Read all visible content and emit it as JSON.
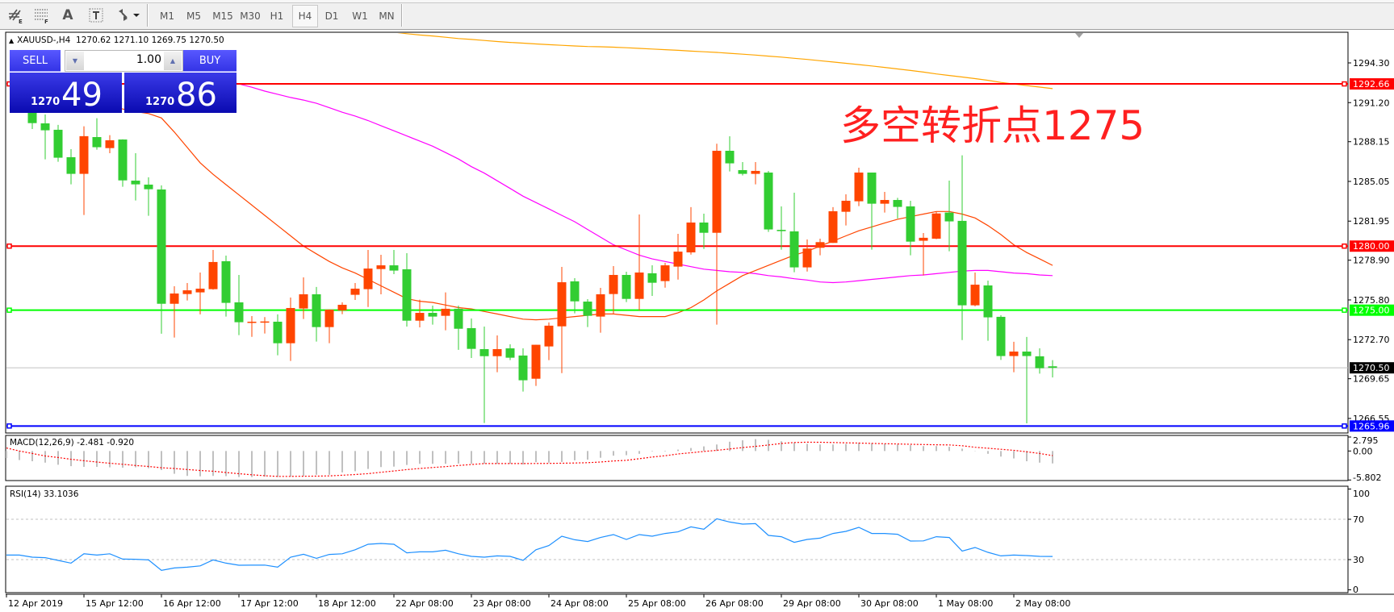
{
  "toolbar": {
    "tools": [
      {
        "icon": "line-studies-grid-icon",
        "glyph": "#",
        "sub": "E"
      },
      {
        "icon": "fibonacci-lines-icon",
        "glyph": "≡",
        "sub": "F"
      },
      {
        "icon": "text-label-icon",
        "glyph": "A"
      },
      {
        "icon": "text-box-icon",
        "glyph": "T"
      },
      {
        "icon": "arrows-dropdown-icon",
        "glyph": "⇅▾"
      }
    ],
    "timeframes": [
      "M1",
      "M5",
      "M15",
      "M30",
      "H1",
      "H4",
      "D1",
      "W1",
      "MN"
    ],
    "active_timeframe": "H4"
  },
  "chart": {
    "header_symbol": "XAUUSD-,H4",
    "header_ohlc": "1270.62 1271.10 1269.75 1270.50",
    "annotation": "多空转折点1275"
  },
  "trade_panel": {
    "sell_label": "SELL",
    "buy_label": "BUY",
    "lot": "1.00",
    "sell_price_small": "1270",
    "sell_price_big": "49",
    "buy_price_small": "1270",
    "buy_price_big": "86"
  },
  "indicators": {
    "macd_label": "MACD(12,26,9) -2.481 -0.920",
    "rsi_label": "RSI(14) 33.1036"
  },
  "chart_data": {
    "type": "candlestick",
    "symbol": "XAUUSD-",
    "timeframe": "H4",
    "colors": {
      "bull": "#ff4500",
      "bear": "#32cd32",
      "ma_fast": "#ff4500",
      "ma_mid": "#ff00ff",
      "ma_slow": "#ffa500",
      "rsi": "#1e90ff",
      "macd_hist": "#c0c0c0",
      "macd_signal": "#ff0000"
    },
    "price_axis": {
      "min": 1265.5,
      "max": 1296.7,
      "ticks": [
        "1294.30",
        "1291.20",
        "1288.15",
        "1285.05",
        "1281.95",
        "1278.90",
        "1275.80",
        "1272.70",
        "1269.65",
        "1266.55"
      ]
    },
    "date_labels": [
      {
        "bar": 0,
        "text": "12 Apr 2019"
      },
      {
        "bar": 6,
        "text": "15 Apr 12:00"
      },
      {
        "bar": 12,
        "text": "16 Apr 12:00"
      },
      {
        "bar": 18,
        "text": "17 Apr 12:00"
      },
      {
        "bar": 24,
        "text": "18 Apr 12:00"
      },
      {
        "bar": 30,
        "text": "22 Apr 08:00"
      },
      {
        "bar": 36,
        "text": "23 Apr 08:00"
      },
      {
        "bar": 42,
        "text": "24 Apr 08:00"
      },
      {
        "bar": 48,
        "text": "25 Apr 08:00"
      },
      {
        "bar": 54,
        "text": "26 Apr 08:00"
      },
      {
        "bar": 60,
        "text": "29 Apr 08:00"
      },
      {
        "bar": 66,
        "text": "30 Apr 08:00"
      },
      {
        "bar": 72,
        "text": "1 May 08:00"
      },
      {
        "bar": 78,
        "text": "2 May 08:00"
      }
    ],
    "horizontal_lines": [
      {
        "price": 1292.66,
        "label": "1292.66",
        "color": "#ff0000"
      },
      {
        "price": 1280.0,
        "label": "1280.00",
        "color": "#ff0000"
      },
      {
        "price": 1275.0,
        "label": "1275.00",
        "color": "#00ff00"
      },
      {
        "price": 1265.96,
        "label": "1265.96",
        "color": "#0000ff"
      }
    ],
    "bid_line": {
      "price": 1270.5,
      "label": "1270.50",
      "color": "#c0c0c0"
    },
    "candles_ohlc": [
      null,
      null,
      [
        1290.6,
        1291.0,
        1289.14,
        1289.6
      ],
      [
        1289.58,
        1290.27,
        1286.77,
        1289.04
      ],
      [
        1289.08,
        1289.46,
        1286.58,
        1286.9
      ],
      [
        1286.94,
        1287.57,
        1284.82,
        1285.64
      ],
      [
        1285.64,
        1289.35,
        1282.43,
        1288.58
      ],
      [
        1288.51,
        1289.98,
        1287.53,
        1287.72
      ],
      [
        1287.65,
        1288.66,
        1287.25,
        1288.26
      ],
      [
        1288.32,
        1288.34,
        1284.63,
        1285.13
      ],
      [
        1285.11,
        1287.25,
        1283.56,
        1284.82
      ],
      [
        1284.8,
        1285.37,
        1282.37,
        1284.44
      ],
      [
        1284.42,
        1284.74,
        1273.16,
        1275.5
      ],
      [
        1275.5,
        1276.87,
        1272.86,
        1276.3
      ],
      [
        1276.26,
        1277.12,
        1275.76,
        1276.55
      ],
      [
        1276.39,
        1277.94,
        1274.67,
        1276.68
      ],
      [
        1276.64,
        1279.7,
        1276.6,
        1278.76
      ],
      [
        1278.82,
        1279.26,
        1274.5,
        1275.57
      ],
      [
        1275.61,
        1277.75,
        1273.05,
        1274.06
      ],
      [
        1274.04,
        1274.54,
        1272.92,
        1274.1
      ],
      [
        1274.06,
        1274.46,
        1273.18,
        1274.12
      ],
      [
        1274.1,
        1274.67,
        1271.48,
        1272.42
      ],
      [
        1272.42,
        1275.99,
        1271.04,
        1275.17
      ],
      [
        1275.13,
        1277.56,
        1274.31,
        1276.24
      ],
      [
        1276.24,
        1276.81,
        1272.55,
        1273.68
      ],
      [
        1273.68,
        1275.06,
        1272.42,
        1275.04
      ],
      [
        1274.98,
        1275.61,
        1274.69,
        1275.42
      ],
      [
        1276.2,
        1277.12,
        1275.8,
        1276.68
      ],
      [
        1276.64,
        1279.7,
        1275.25,
        1278.25
      ],
      [
        1278.21,
        1279.32,
        1276.24,
        1278.5
      ],
      [
        1278.5,
        1279.7,
        1277.81,
        1278.09
      ],
      [
        1278.19,
        1279.45,
        1273.72,
        1274.18
      ],
      [
        1274.18,
        1275.82,
        1273.66,
        1274.79
      ],
      [
        1274.79,
        1275.36,
        1273.87,
        1274.5
      ],
      [
        1274.56,
        1276.39,
        1273.43,
        1275.11
      ],
      [
        1275.11,
        1275.36,
        1271.9,
        1273.55
      ],
      [
        1273.6,
        1274.35,
        1271.27,
        1271.98
      ],
      [
        1271.96,
        1273.72,
        1266.19,
        1271.41
      ],
      [
        1271.41,
        1273.03,
        1270.16,
        1271.96
      ],
      [
        1272.02,
        1272.34,
        1271.1,
        1271.29
      ],
      [
        1271.46,
        1272.02,
        1268.65,
        1269.53
      ],
      [
        1269.65,
        1272.3,
        1269.09,
        1272.3
      ],
      [
        1272.17,
        1274.04,
        1271.1,
        1273.79
      ],
      [
        1273.74,
        1278.38,
        1270.09,
        1277.18
      ],
      [
        1277.25,
        1277.5,
        1274.75,
        1275.69
      ],
      [
        1275.67,
        1275.86,
        1273.68,
        1274.56
      ],
      [
        1274.5,
        1276.74,
        1273.24,
        1276.24
      ],
      [
        1276.26,
        1278.44,
        1274.67,
        1277.75
      ],
      [
        1277.75,
        1278.0,
        1275.63,
        1275.88
      ],
      [
        1275.88,
        1282.47,
        1274.98,
        1277.94
      ],
      [
        1277.88,
        1278.5,
        1276.11,
        1277.14
      ],
      [
        1277.27,
        1278.69,
        1276.76,
        1278.5
      ],
      [
        1278.4,
        1280.96,
        1277.39,
        1279.57
      ],
      [
        1279.51,
        1283.04,
        1279.34,
        1281.84
      ],
      [
        1281.84,
        1282.53,
        1279.78,
        1281.04
      ],
      [
        1281.04,
        1287.99,
        1273.87,
        1287.44
      ],
      [
        1287.44,
        1288.57,
        1285.83,
        1286.46
      ],
      [
        1285.93,
        1286.56,
        1285.51,
        1285.64
      ],
      [
        1285.64,
        1286.56,
        1284.82,
        1285.87
      ],
      [
        1285.74,
        1285.87,
        1281.11,
        1281.3
      ],
      [
        1281.27,
        1283.1,
        1279.72,
        1281.17
      ],
      [
        1281.15,
        1284.17,
        1277.96,
        1278.34
      ],
      [
        1278.34,
        1280.52,
        1278.02,
        1279.81
      ],
      [
        1279.87,
        1280.58,
        1279.28,
        1280.31
      ],
      [
        1280.25,
        1283.04,
        1280.25,
        1282.72
      ],
      [
        1282.68,
        1284.04,
        1281.61,
        1283.54
      ],
      [
        1283.5,
        1286.12,
        1283.12,
        1285.74
      ],
      [
        1285.74,
        1285.74,
        1279.72,
        1283.31
      ],
      [
        1283.31,
        1284.23,
        1282.62,
        1283.6
      ],
      [
        1283.6,
        1283.77,
        1282.16,
        1283.06
      ],
      [
        1283.1,
        1283.54,
        1279.28,
        1280.35
      ],
      [
        1280.42,
        1281.02,
        1277.71,
        1280.65
      ],
      [
        1280.58,
        1282.68,
        1280.54,
        1282.55
      ],
      [
        1282.62,
        1285.11,
        1279.6,
        1281.93
      ],
      [
        1281.97,
        1287.09,
        1272.67,
        1275.38
      ],
      [
        1275.38,
        1277.94,
        1275.3,
        1276.99
      ],
      [
        1276.93,
        1277.31,
        1272.61,
        1274.44
      ],
      [
        1274.48,
        1274.6,
        1271.12,
        1271.42
      ],
      [
        1271.42,
        1272.53,
        1270.16,
        1271.77
      ],
      [
        1271.77,
        1272.91,
        1266.17,
        1271.42
      ],
      [
        1271.4,
        1272.02,
        1270.05,
        1270.47
      ],
      [
        1270.62,
        1271.1,
        1269.75,
        1270.5
      ]
    ],
    "ma_fast": [
      null,
      null,
      null,
      null,
      null,
      1293.1,
      1292.3,
      1291.4,
      1291.0,
      1290.7,
      1290.5,
      1290.35,
      1290.0,
      1288.9,
      1287.7,
      1286.5,
      1285.6,
      1284.8,
      1284.0,
      1283.2,
      1282.4,
      1281.6,
      1280.8,
      1280.0,
      1279.4,
      1278.8,
      1278.3,
      1277.9,
      1277.4,
      1276.9,
      1276.4,
      1275.9,
      1275.7,
      1275.6,
      1275.4,
      1275.2,
      1275.1,
      1274.9,
      1274.7,
      1274.5,
      1274.3,
      1274.25,
      1274.3,
      1274.4,
      1274.5,
      1274.6,
      1274.7,
      1274.7,
      1274.6,
      1274.5,
      1274.5,
      1274.5,
      1274.8,
      1275.2,
      1275.8,
      1276.5,
      1277.1,
      1277.7,
      1278.1,
      1278.5,
      1278.9,
      1279.3,
      1279.6,
      1280.0,
      1280.4,
      1280.8,
      1281.2,
      1281.5,
      1281.8,
      1282.1,
      1282.3,
      1282.5,
      1282.7,
      1282.7,
      1282.5,
      1282.2,
      1281.6,
      1280.9,
      1280.1,
      1279.5,
      1279.0,
      1278.5
    ],
    "ma_mid": [
      null,
      null,
      null,
      null,
      null,
      null,
      null,
      null,
      null,
      null,
      null,
      null,
      null,
      null,
      null,
      null,
      null,
      1292.9,
      1292.66,
      1292.4,
      1292.1,
      1291.85,
      1291.6,
      1291.4,
      1291.15,
      1290.8,
      1290.45,
      1290.15,
      1289.8,
      1289.4,
      1289.0,
      1288.6,
      1288.2,
      1287.8,
      1287.3,
      1286.8,
      1286.2,
      1285.7,
      1285.1,
      1284.5,
      1283.9,
      1283.4,
      1282.9,
      1282.4,
      1281.9,
      1281.3,
      1280.7,
      1280.1,
      1279.7,
      1279.3,
      1279.0,
      1278.8,
      1278.6,
      1278.4,
      1278.2,
      1278.1,
      1278.0,
      1277.95,
      1277.85,
      1277.7,
      1277.6,
      1277.45,
      1277.35,
      1277.2,
      1277.15,
      1277.2,
      1277.3,
      1277.4,
      1277.5,
      1277.6,
      1277.7,
      1277.75,
      1277.85,
      1277.95,
      1278.05,
      1278.1,
      1278.1,
      1278.0,
      1277.9,
      1277.85,
      1277.75,
      1277.7
    ],
    "ma_slow": [
      null,
      null,
      null,
      null,
      null,
      null,
      null,
      null,
      null,
      null,
      null,
      null,
      null,
      null,
      null,
      null,
      null,
      null,
      null,
      null,
      null,
      null,
      null,
      null,
      null,
      null,
      null,
      null,
      null,
      null,
      1296.7,
      1296.58,
      1296.48,
      1296.4,
      1296.3,
      1296.2,
      1296.13,
      1296.05,
      1295.97,
      1295.9,
      1295.84,
      1295.78,
      1295.72,
      1295.67,
      1295.62,
      1295.58,
      1295.56,
      1295.53,
      1295.48,
      1295.43,
      1295.38,
      1295.33,
      1295.28,
      1295.22,
      1295.17,
      1295.12,
      1295.05,
      1294.98,
      1294.91,
      1294.83,
      1294.75,
      1294.66,
      1294.57,
      1294.47,
      1294.37,
      1294.27,
      1294.17,
      1294.06,
      1293.95,
      1293.83,
      1293.71,
      1293.58,
      1293.44,
      1293.32,
      1293.2,
      1293.07,
      1292.94,
      1292.78,
      1292.65,
      1292.53,
      1292.41,
      1292.29
    ],
    "macd": {
      "params": "12,26,9",
      "axis_labels": [
        "2.795",
        "0.00",
        "-5.802"
      ],
      "range": [
        -5.802,
        2.795
      ],
      "histogram": [
        -1.4,
        -1.81,
        -2.05,
        -2.33,
        -2.75,
        -3.03,
        -3.17,
        -3.17,
        -3.26,
        -3.35,
        -3.26,
        -3.44,
        -3.82,
        -4.56,
        -4.98,
        -5.07,
        -4.98,
        -5.03,
        -5.21,
        -5.21,
        -5.12,
        -5.21,
        -5.12,
        -4.98,
        -4.75,
        -4.75,
        -4.28,
        -4.05,
        -3.59,
        -3.21,
        -3.12,
        -2.79,
        -2.56,
        -2.56,
        -2.56,
        -2.51,
        -2.56,
        -2.56,
        -2.56,
        -2.56,
        -2.7,
        -2.23,
        -2.33,
        -2.19,
        -1.86,
        -1.72,
        -1.35,
        -0.93,
        -0.84,
        -0.56,
        -0.09,
        -0.1,
        0.28,
        0.6,
        0.93,
        1.3,
        1.86,
        2.14,
        2.37,
        2.23,
        1.95,
        1.68,
        1.44,
        1.3,
        1.3,
        1.4,
        1.68,
        1.54,
        1.44,
        1.3,
        1.16,
        0.98,
        0.98,
        0.84,
        0.47,
        0.05,
        -0.56,
        -1.12,
        -1.49,
        -2.05,
        -2.33,
        -2.481
      ],
      "signal": [
        0.6,
        0.0,
        -0.5,
        -1.0,
        -1.3,
        -1.65,
        -1.95,
        -2.2,
        -2.45,
        -2.65,
        -2.9,
        -3.1,
        -3.35,
        -3.5,
        -3.7,
        -3.9,
        -4.05,
        -4.3,
        -4.55,
        -4.75,
        -4.95,
        -5.07,
        -5.07,
        -5.05,
        -5.02,
        -4.98,
        -4.85,
        -4.7,
        -4.52,
        -4.25,
        -4.0,
        -3.72,
        -3.5,
        -3.3,
        -3.12,
        -2.9,
        -2.7,
        -2.51,
        -2.51,
        -2.51,
        -2.51,
        -2.5,
        -2.48,
        -2.45,
        -2.4,
        -2.33,
        -2.2,
        -2.0,
        -1.86,
        -1.55,
        -1.2,
        -0.95,
        -0.6,
        -0.35,
        -0.1,
        0.14,
        0.4,
        0.68,
        0.93,
        1.2,
        1.5,
        1.7,
        1.77,
        1.75,
        1.7,
        1.63,
        1.58,
        1.52,
        1.46,
        1.4,
        1.35,
        1.3,
        1.25,
        1.21,
        1.05,
        0.74,
        0.55,
        0.35,
        0.14,
        -0.15,
        -0.5,
        -0.92
      ]
    },
    "rsi": {
      "period": 14,
      "axis_labels": [
        "100",
        "70",
        "30",
        "0"
      ],
      "levels": [
        70,
        30
      ],
      "range": [
        0,
        100
      ],
      "values": [
        34.5,
        34.5,
        32.4,
        31.9,
        29.2,
        26.5,
        35.8,
        34.5,
        35.8,
        30.5,
        30.3,
        29.7,
        19.3,
        21.7,
        22.5,
        23.8,
        29.7,
        26.5,
        24.4,
        24.5,
        24.6,
        22.5,
        32.4,
        35.3,
        31.3,
        35.1,
        35.8,
        39.8,
        45.2,
        46.0,
        45.2,
        36.7,
        37.7,
        37.7,
        39.3,
        35.8,
        33.2,
        32.4,
        33.7,
        33.2,
        29.2,
        39.8,
        43.9,
        53.2,
        49.7,
        47.9,
        51.9,
        54.8,
        50.0,
        54.8,
        53.2,
        55.9,
        57.5,
        62.5,
        60.1,
        70.5,
        67.3,
        65.2,
        65.7,
        54.0,
        52.7,
        47.1,
        50.0,
        51.3,
        55.9,
        58.0,
        62.0,
        55.9,
        55.9,
        55.1,
        48.4,
        48.6,
        52.7,
        51.9,
        38.5,
        42.0,
        37.2,
        33.7,
        34.5,
        34.0,
        33.2,
        33.1
      ]
    }
  }
}
